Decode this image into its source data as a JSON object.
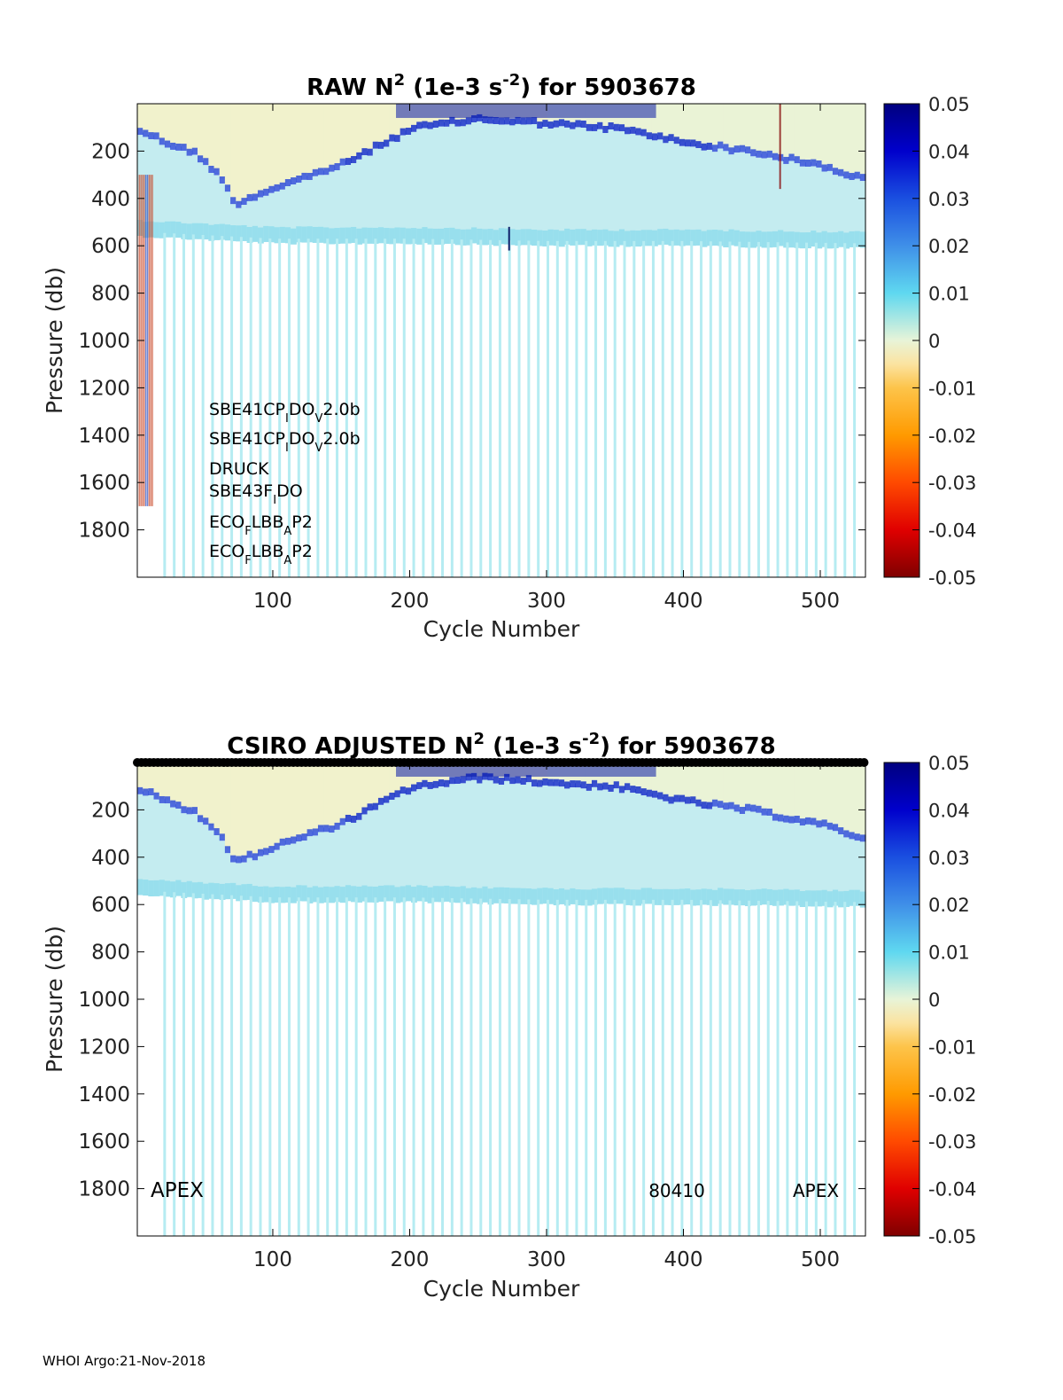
{
  "footer": "WHOI Argo:21-Nov-2018",
  "chart_data": [
    {
      "type": "heatmap",
      "title_parts": [
        "RAW N",
        "2",
        " (1e-3 s",
        "-2",
        ") for 5903678"
      ],
      "xlabel": "Cycle Number",
      "ylabel": "Pressure (db)",
      "xlim": [
        1,
        533
      ],
      "ylim": [
        0,
        2000
      ],
      "y_reversed": true,
      "xticks": [
        100,
        200,
        300,
        400,
        500
      ],
      "yticks": [
        200,
        400,
        600,
        800,
        1000,
        1200,
        1400,
        1600,
        1800
      ],
      "colorbar": {
        "range": [
          -0.05,
          0.05
        ],
        "ticks": [
          "0.05",
          "0.04",
          "0.03",
          "0.02",
          "0.01",
          "0",
          "-0.01",
          "-0.02",
          "-0.03",
          "-0.04",
          "-0.05"
        ]
      },
      "sensors": [
        [
          "SBE41CP",
          "I",
          "DO",
          "V",
          "2.0b"
        ],
        [
          "SBE41CP",
          "I",
          "DO",
          "V",
          "2.0b"
        ],
        [
          "DRUCK"
        ],
        [
          "SBE43F",
          "I",
          "DO"
        ],
        [
          "ECO",
          "F",
          "LBB",
          "A",
          "P2"
        ],
        [
          "ECO",
          "F",
          "LBB",
          "A",
          "P2"
        ]
      ],
      "features": {
        "thermocline_depth_by_cycle": [
          [
            1,
            110
          ],
          [
            10,
            130
          ],
          [
            20,
            160
          ],
          [
            40,
            200
          ],
          [
            60,
            300
          ],
          [
            70,
            420
          ],
          [
            100,
            350
          ],
          [
            150,
            250
          ],
          [
            200,
            100
          ],
          [
            250,
            60
          ],
          [
            300,
            80
          ],
          [
            350,
            100
          ],
          [
            400,
            160
          ],
          [
            450,
            200
          ],
          [
            500,
            260
          ],
          [
            533,
            320
          ]
        ],
        "shallow_profile_bottom_by_cycle": [
          [
            1,
            560
          ],
          [
            100,
            590
          ],
          [
            200,
            590
          ],
          [
            300,
            600
          ],
          [
            400,
            600
          ],
          [
            533,
            610
          ]
        ]
      }
    },
    {
      "type": "heatmap",
      "title_parts": [
        "CSIRO  ADJUSTED N",
        "2",
        " (1e-3 s",
        "-2",
        ") for 5903678"
      ],
      "xlabel": "Cycle Number",
      "ylabel": "Pressure (db)",
      "xlim": [
        1,
        533
      ],
      "ylim": [
        0,
        2000
      ],
      "y_reversed": true,
      "xticks": [
        100,
        200,
        300,
        400,
        500
      ],
      "yticks": [
        200,
        400,
        600,
        800,
        1000,
        1200,
        1400,
        1600,
        1800
      ],
      "colorbar": {
        "range": [
          -0.05,
          0.05
        ],
        "ticks": [
          "0.05",
          "0.04",
          "0.03",
          "0.02",
          "0.01",
          "0",
          "-0.01",
          "-0.02",
          "-0.03",
          "-0.04",
          "-0.05"
        ]
      },
      "annotations": {
        "left": "APEX",
        "middle": "80410",
        "right": "APEX"
      },
      "qc_marker_row_pressure": 0
    }
  ]
}
